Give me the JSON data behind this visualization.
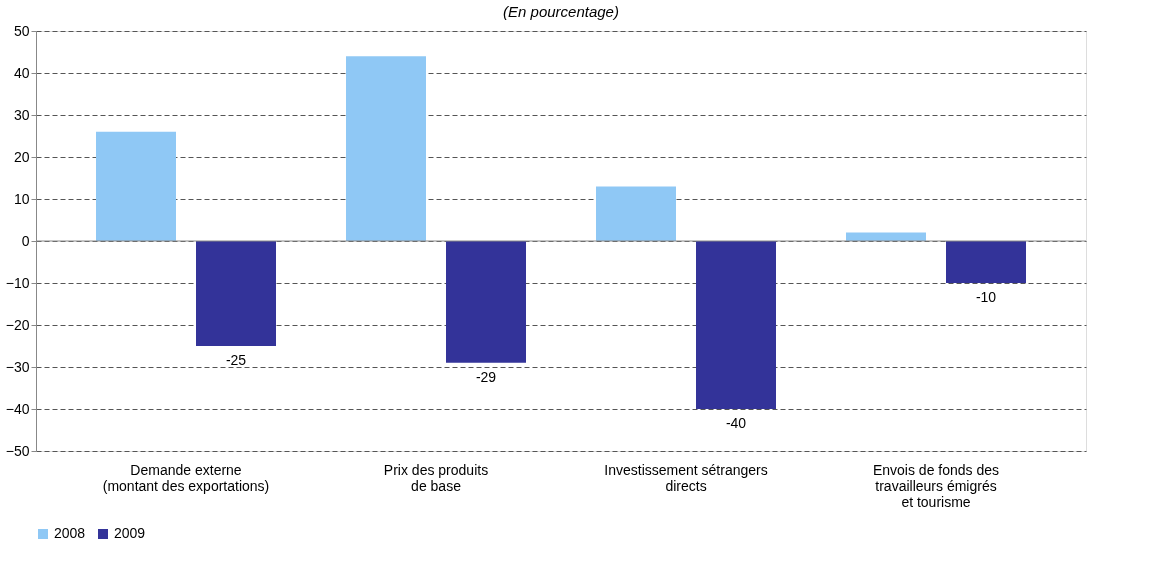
{
  "chart_data": {
    "type": "bar",
    "title": "(En pourcentage)",
    "categories": [
      "Demande externe\n(montant des exportations)",
      "Prix des produits\nde base",
      "Investissement sétrangers\ndirects",
      "Envois de fonds des\ntravailleurs émigrés\net tourisme"
    ],
    "series": [
      {
        "name": "2008",
        "color": "#8fc8f5",
        "values": [
          26,
          44,
          13,
          2
        ]
      },
      {
        "name": "2009",
        "color": "#333399",
        "values": [
          -25,
          -29,
          -40,
          -10
        ],
        "value_labels": [
          "-25",
          "-29",
          "-40",
          "-10"
        ]
      }
    ],
    "ylim": [
      -50,
      50
    ],
    "yticks": [
      -50,
      -40,
      -30,
      -20,
      -10,
      0,
      10,
      20,
      30,
      40,
      50
    ],
    "grid": "y",
    "legend": "bottom"
  }
}
